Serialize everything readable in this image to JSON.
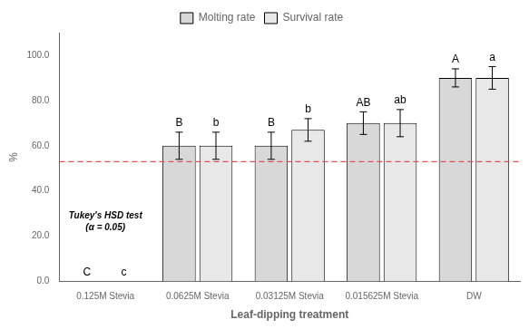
{
  "chart_data": {
    "type": "bar",
    "categories": [
      "0.125M Stevia",
      "0.0625M Stevia",
      "0.03125M Stevia",
      "0.015625M Stevia",
      "DW"
    ],
    "series": [
      {
        "name": "Molting rate",
        "color": "#d8d8d8",
        "values": [
          0.0,
          60.0,
          60.0,
          70.0,
          90.0
        ],
        "errors": [
          0.0,
          6.0,
          6.0,
          5.0,
          4.0
        ],
        "letters": [
          "C",
          "B",
          "B",
          "AB",
          "A"
        ]
      },
      {
        "name": "Survival rate",
        "color": "#e8e8e8",
        "values": [
          0.0,
          60.0,
          67.0,
          70.0,
          90.0
        ],
        "errors": [
          0.0,
          6.0,
          5.0,
          6.0,
          5.0
        ],
        "letters": [
          "c",
          "b",
          "b",
          "ab",
          "a"
        ]
      }
    ],
    "xlabel": "Leaf-dipping treatment",
    "ylabel": "%",
    "ylim": [
      0,
      110
    ],
    "yticks": [
      {
        "value": 0,
        "label": "0.0"
      },
      {
        "value": 20,
        "label": "20.0"
      },
      {
        "value": 40,
        "label": "40.0"
      },
      {
        "value": 60,
        "label": "60.0"
      },
      {
        "value": 80,
        "label": "80.0"
      },
      {
        "value": 100,
        "label": "100.0"
      }
    ],
    "reference_lines": [
      {
        "value": 53.0,
        "color": "#e05050",
        "line_style": "dashed"
      }
    ],
    "annotation": "Tukey's HSD test\n(α = 0.05)",
    "legend": "top",
    "grid": false
  }
}
